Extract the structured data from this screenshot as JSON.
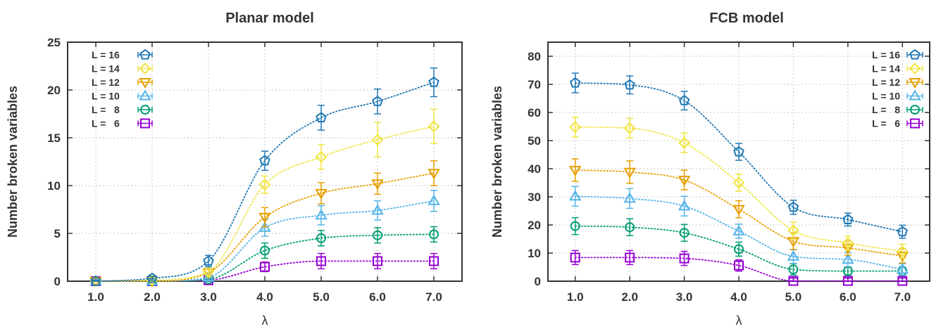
{
  "colors": {
    "L16": "#1f78b4",
    "L14": "#f0e442",
    "L12": "#e69f00",
    "L10": "#56b4e9",
    "L8": "#009e73",
    "L6": "#9400d3",
    "axis": "#333333",
    "grid": "#c8c8c8"
  },
  "chart_data": [
    {
      "type": "scatter",
      "title": "Planar model",
      "xlabel": "λ",
      "ylabel": "Number broken variables",
      "x": [
        1.0,
        2.0,
        3.0,
        4.0,
        5.0,
        6.0,
        7.0
      ],
      "xtick_labels": [
        "1.0",
        "2.0",
        "3.0",
        "4.0",
        "5.0",
        "6.0",
        "7.0"
      ],
      "xlim": [
        0.5,
        7.5
      ],
      "ylim": [
        0,
        25
      ],
      "yticks": [
        0,
        5,
        10,
        15,
        20,
        25
      ],
      "grid": true,
      "legend_position": "top-left",
      "series": [
        {
          "name": "L = 16",
          "marker": "pentagon",
          "values": [
            0,
            0.3,
            2.1,
            12.6,
            17.1,
            18.8,
            20.8
          ],
          "errors": [
            0.1,
            0.2,
            0.6,
            1.0,
            1.3,
            1.3,
            1.5
          ]
        },
        {
          "name": "L = 14",
          "marker": "diamond",
          "values": [
            0,
            0.1,
            1.0,
            10.1,
            13.0,
            14.8,
            16.2
          ],
          "errors": [
            0.1,
            0.2,
            0.5,
            0.9,
            1.3,
            1.8,
            1.8
          ]
        },
        {
          "name": "L = 12",
          "marker": "triangle-down",
          "values": [
            0,
            0,
            0.9,
            6.7,
            9.2,
            10.2,
            11.3
          ],
          "errors": [
            0.1,
            0.1,
            0.4,
            1.0,
            1.1,
            1.1,
            1.3
          ]
        },
        {
          "name": "L = 10",
          "marker": "triangle-up",
          "values": [
            0,
            0,
            0.4,
            5.6,
            6.9,
            7.4,
            8.4
          ],
          "errors": [
            0.1,
            0.1,
            0.3,
            0.9,
            1.0,
            1.0,
            1.1
          ]
        },
        {
          "name": "L =   8",
          "marker": "circle",
          "values": [
            0,
            0,
            0.2,
            3.2,
            4.5,
            4.8,
            4.9
          ],
          "errors": [
            0.1,
            0.1,
            0.2,
            0.8,
            0.8,
            0.8,
            0.8
          ]
        },
        {
          "name": "L =   6",
          "marker": "square",
          "values": [
            0,
            0,
            0.1,
            1.5,
            2.1,
            2.1,
            2.1
          ],
          "errors": [
            0.1,
            0.1,
            0.1,
            0.5,
            0.8,
            0.8,
            0.8
          ]
        }
      ]
    },
    {
      "type": "scatter",
      "title": "FCB model",
      "xlabel": "λ",
      "ylabel": "Number broken variables",
      "x": [
        1.0,
        2.0,
        3.0,
        4.0,
        5.0,
        6.0,
        7.0
      ],
      "xtick_labels": [
        "1.0",
        "2.0",
        "3.0",
        "4.0",
        "5.0",
        "6.0",
        "7.0"
      ],
      "xlim": [
        0.5,
        7.5
      ],
      "ylim": [
        0,
        85
      ],
      "yticks": [
        0,
        10,
        20,
        30,
        40,
        50,
        60,
        70,
        80
      ],
      "grid": true,
      "legend_position": "top-right",
      "series": [
        {
          "name": "L = 16",
          "marker": "pentagon",
          "values": [
            70.5,
            69.8,
            64.2,
            46.0,
            26.3,
            21.9,
            17.6
          ],
          "errors": [
            3.5,
            3.2,
            3.3,
            3.0,
            2.5,
            2.3,
            2.3
          ]
        },
        {
          "name": "L = 14",
          "marker": "diamond",
          "values": [
            54.8,
            54.4,
            49.2,
            35.0,
            18.0,
            13.6,
            10.6
          ],
          "errors": [
            3.5,
            3.5,
            3.5,
            3.0,
            3.0,
            2.5,
            2.5
          ]
        },
        {
          "name": "L = 12",
          "marker": "triangle-down",
          "values": [
            39.5,
            38.8,
            36.0,
            25.6,
            14.2,
            11.8,
            9.0
          ],
          "errors": [
            4.0,
            4.0,
            3.5,
            3.0,
            3.0,
            2.5,
            2.5
          ]
        },
        {
          "name": "L = 10",
          "marker": "triangle-up",
          "values": [
            30.2,
            29.4,
            26.7,
            17.8,
            8.8,
            7.7,
            4.2
          ],
          "errors": [
            3.5,
            3.5,
            3.5,
            2.5,
            2.5,
            2.5,
            2.0
          ]
        },
        {
          "name": "L =   8",
          "marker": "circle",
          "values": [
            19.6,
            19.2,
            17.2,
            11.4,
            4.2,
            3.6,
            3.6
          ],
          "errors": [
            3.0,
            3.0,
            3.0,
            2.5,
            2.0,
            1.5,
            1.5
          ]
        },
        {
          "name": "L =   6",
          "marker": "square",
          "values": [
            8.4,
            8.4,
            8.1,
            5.6,
            0.1,
            0.1,
            0.1
          ],
          "errors": [
            2.5,
            2.5,
            2.5,
            2.0,
            1.0,
            1.0,
            1.0
          ]
        }
      ]
    }
  ]
}
